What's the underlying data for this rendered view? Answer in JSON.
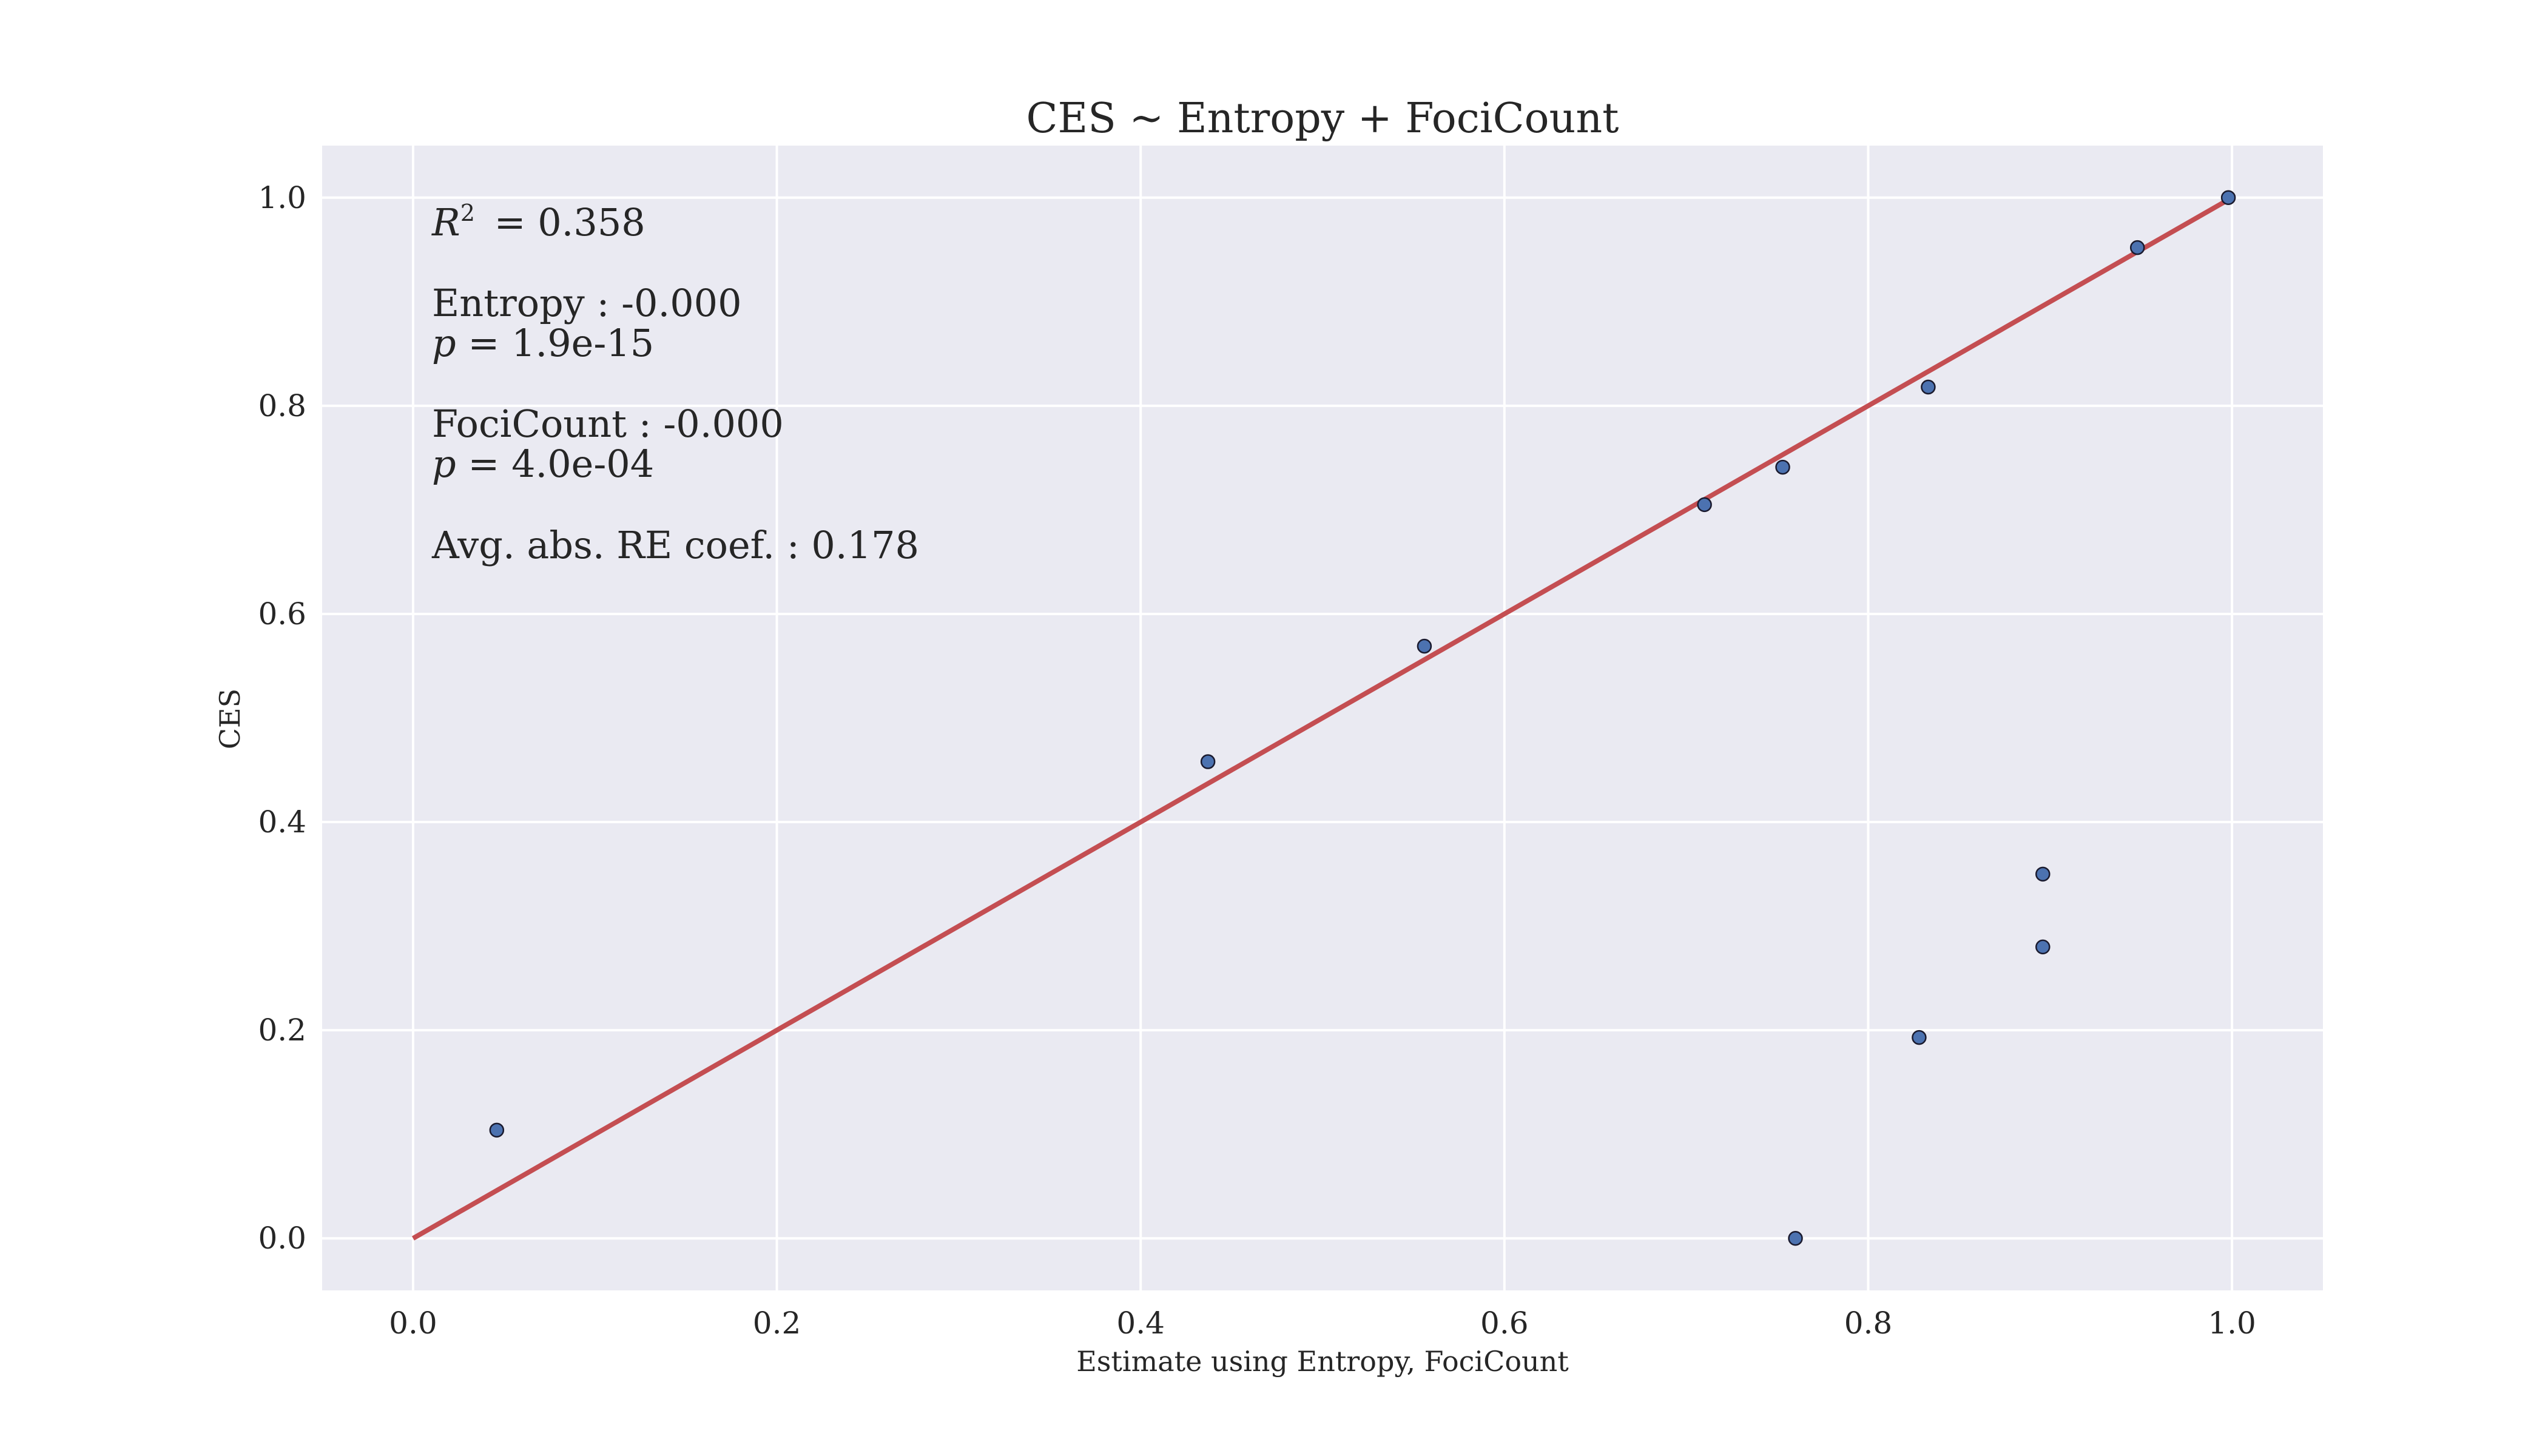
{
  "chart_data": {
    "type": "scatter",
    "title": "CES ~ Entropy + FociCount",
    "xlabel": "Estimate using Entropy, FociCount",
    "ylabel": "CES",
    "xlim": [
      -0.05,
      1.05
    ],
    "ylim": [
      -0.05,
      1.05
    ],
    "xticks": [
      0.0,
      0.2,
      0.4,
      0.6,
      0.8,
      1.0
    ],
    "yticks": [
      0.0,
      0.2,
      0.4,
      0.6,
      0.8,
      1.0
    ],
    "xtick_labels": [
      "0.0",
      "0.2",
      "0.4",
      "0.6",
      "0.8",
      "1.0"
    ],
    "ytick_labels": [
      "0.0",
      "0.2",
      "0.4",
      "0.6",
      "0.8",
      "1.0"
    ],
    "grid": true,
    "points": [
      {
        "x": 0.046,
        "y": 0.104
      },
      {
        "x": 0.437,
        "y": 0.458
      },
      {
        "x": 0.556,
        "y": 0.569
      },
      {
        "x": 0.71,
        "y": 0.705
      },
      {
        "x": 0.753,
        "y": 0.741
      },
      {
        "x": 0.76,
        "y": 0.0
      },
      {
        "x": 0.828,
        "y": 0.193
      },
      {
        "x": 0.833,
        "y": 0.818
      },
      {
        "x": 0.896,
        "y": 0.35
      },
      {
        "x": 0.896,
        "y": 0.28
      },
      {
        "x": 0.948,
        "y": 0.952
      },
      {
        "x": 0.998,
        "y": 1.0
      }
    ],
    "reference_line": {
      "x": [
        0.0,
        1.0
      ],
      "y": [
        0.0,
        1.0
      ]
    },
    "annotation": {
      "r2_symbol": "R",
      "r2_superscript": "2",
      "r2_value": " = 0.358",
      "entropy_coef": "Entropy : -0.000",
      "p_symbol": "p",
      "entropy_p": " = 1.9e-15",
      "foci_coef": "FociCount : -0.000",
      "foci_p": " = 4.0e-04",
      "avg_re": "Avg. abs. RE coef. : 0.178"
    },
    "colors": {
      "plot_background": "#eaeaf2",
      "grid": "#ffffff",
      "points": "#4c72b0",
      "point_edge": "#1a1a2e",
      "line": "#c44e52",
      "text": "#262626"
    }
  }
}
